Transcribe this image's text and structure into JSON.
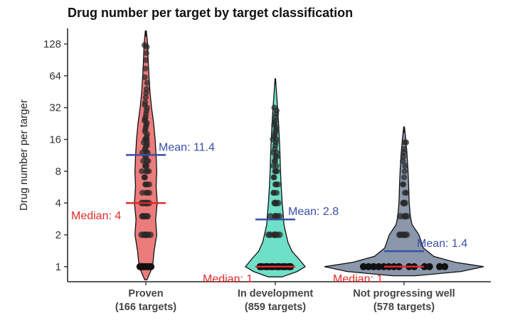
{
  "chart_data": {
    "type": "violin",
    "title": "Drug number per target by target classification",
    "ylabel": "Drug number per targer",
    "xlabel": "",
    "y_scale": "log2",
    "ylim": [
      0.72,
      180
    ],
    "y_ticks": [
      1,
      2,
      4,
      8,
      16,
      32,
      64,
      128
    ],
    "y_tick_labels": [
      "1",
      "2",
      "4",
      "8",
      "16",
      "32",
      "64",
      "128"
    ],
    "grid": false,
    "legend": "none",
    "categories": [
      {
        "name": "Proven",
        "count_label": "(166 targets)",
        "color": "#ec7c7c",
        "y_min": 0.75,
        "y_max": 170,
        "mean": 11.4,
        "median": 4,
        "mean_label": "Mean: 11.4",
        "median_label": "Median: 4",
        "density": [
          [
            0.75,
            0.2
          ],
          [
            1,
            1.3
          ],
          [
            1.4,
            1.6
          ],
          [
            2,
            2.1
          ],
          [
            2.8,
            1.9
          ],
          [
            4,
            2.2
          ],
          [
            5.7,
            2.0
          ],
          [
            8,
            2.1
          ],
          [
            11,
            2.0
          ],
          [
            16,
            1.8
          ],
          [
            23,
            1.5
          ],
          [
            32,
            1.1
          ],
          [
            45,
            0.8
          ],
          [
            64,
            0.6
          ],
          [
            90,
            0.45
          ],
          [
            128,
            0.35
          ],
          [
            170,
            0.1
          ]
        ],
        "points": [
          1,
          1,
          1,
          1,
          1,
          1,
          1,
          1,
          2,
          2,
          2,
          2,
          2,
          2,
          2,
          3,
          3,
          3,
          3,
          3,
          4,
          4,
          4,
          4,
          4,
          4,
          5,
          5,
          5,
          5,
          6,
          6,
          6,
          6,
          7,
          7,
          7,
          8,
          8,
          8,
          8,
          9,
          9,
          9,
          10,
          10,
          10,
          11,
          11,
          12,
          12,
          12,
          13,
          13,
          14,
          14,
          15,
          15,
          16,
          16,
          16,
          17,
          18,
          19,
          20,
          21,
          22,
          23,
          24,
          25,
          26,
          28,
          30,
          32,
          34,
          36,
          40,
          44,
          48,
          55,
          62,
          75,
          90,
          105,
          120,
          125
        ]
      },
      {
        "name": "In development",
        "count_label": "(859 targets)",
        "color": "#6ee0c8",
        "y_min": 0.8,
        "y_max": 60,
        "mean": 2.8,
        "median": 1,
        "mean_label": "Mean: 2.8",
        "median_label": "Median: 1",
        "density": [
          [
            0.8,
            1.2
          ],
          [
            0.9,
            3.8
          ],
          [
            1,
            5.2
          ],
          [
            1.2,
            4.0
          ],
          [
            1.4,
            2.9
          ],
          [
            1.7,
            2.2
          ],
          [
            2,
            1.9
          ],
          [
            2.5,
            1.5
          ],
          [
            3,
            1.4
          ],
          [
            4,
            1.2
          ],
          [
            6,
            1.0
          ],
          [
            8,
            0.9
          ],
          [
            12,
            0.8
          ],
          [
            16,
            0.7
          ],
          [
            24,
            0.55
          ],
          [
            32,
            0.4
          ],
          [
            45,
            0.2
          ],
          [
            60,
            0.05
          ]
        ],
        "points": [
          1,
          1,
          1,
          1,
          1,
          1,
          1,
          1,
          1,
          1,
          1,
          1,
          2,
          2,
          2,
          2,
          2,
          2,
          2,
          3,
          3,
          3,
          3,
          3,
          4,
          4,
          4,
          4,
          5,
          5,
          5,
          6,
          6,
          6,
          7,
          7,
          8,
          8,
          8,
          9,
          9,
          10,
          10,
          11,
          11,
          12,
          12,
          13,
          14,
          15,
          16,
          16,
          17,
          18,
          19,
          20,
          21,
          22,
          23,
          24,
          26,
          28,
          30,
          32
        ]
      },
      {
        "name": "Not progressing well",
        "count_label": "(578 targets)",
        "color": "#8b97ab",
        "y_min": 0.82,
        "y_max": 21,
        "mean": 1.4,
        "median": 1,
        "mean_label": "Mean: 1.4",
        "median_label": "Median: 1",
        "density": [
          [
            0.82,
            1.0
          ],
          [
            0.9,
            5.0
          ],
          [
            1,
            7.0
          ],
          [
            1.1,
            4.5
          ],
          [
            1.25,
            2.6
          ],
          [
            1.5,
            1.7
          ],
          [
            2,
            1.3
          ],
          [
            2.5,
            0.7
          ],
          [
            3,
            0.55
          ],
          [
            4,
            0.45
          ],
          [
            6,
            0.4
          ],
          [
            8,
            0.35
          ],
          [
            12,
            0.25
          ],
          [
            16,
            0.15
          ],
          [
            21,
            0.03
          ]
        ],
        "points": [
          1,
          1,
          1,
          1,
          1,
          1,
          1,
          1,
          1,
          1,
          1,
          1,
          1,
          1,
          2,
          2,
          2,
          2,
          2,
          2,
          3,
          3,
          3,
          3,
          4,
          4,
          4,
          5,
          5,
          6,
          6,
          7,
          8,
          9,
          10,
          11,
          12,
          13,
          15,
          15
        ]
      }
    ]
  }
}
